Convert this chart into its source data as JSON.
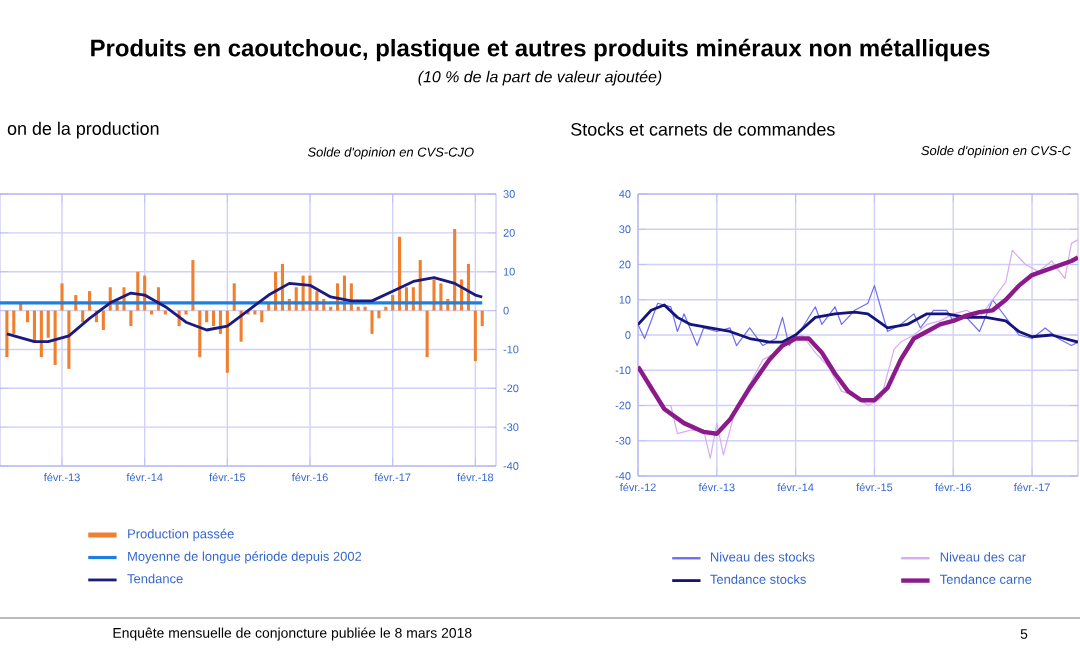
{
  "chart_data": [
    {
      "type": "bar",
      "title": "on de la production",
      "subtitle": "Solde d'opinion en CVS-CJO",
      "annotations": [
        "Produits en caoutchouc, plastique et autres produits minéraux non métalliques",
        "(10 % de la part de valeur ajoutée)",
        "Enquête mensuelle de conjoncture publiée le 8 mars 2018",
        "5"
      ],
      "xlim": [
        "2012-05",
        "2018-05"
      ],
      "ylim": [
        -40,
        30
      ],
      "xticks": [
        {
          "value": "2013-02",
          "label": "févr.-13"
        },
        {
          "value": "2014-02",
          "label": "févr.-14"
        },
        {
          "value": "2015-02",
          "label": "févr.-15"
        },
        {
          "value": "2016-02",
          "label": "févr.-16"
        },
        {
          "value": "2017-02",
          "label": "févr.-17"
        },
        {
          "value": "2018-02",
          "label": "févr.-18"
        }
      ],
      "yticks": [
        -40,
        -30,
        -20,
        -10,
        0,
        10,
        20,
        30
      ],
      "grid": true,
      "legend": "bottom",
      "series": [
        {
          "name": "Production passée",
          "type": "bar",
          "color": "#f08030",
          "x": [
            "2012-06",
            "2012-07",
            "2012-08",
            "2012-09",
            "2012-10",
            "2012-11",
            "2012-12",
            "2013-01",
            "2013-02",
            "2013-03",
            "2013-04",
            "2013-05",
            "2013-06",
            "2013-07",
            "2013-08",
            "2013-09",
            "2013-10",
            "2013-11",
            "2013-12",
            "2014-01",
            "2014-02",
            "2014-03",
            "2014-04",
            "2014-05",
            "2014-06",
            "2014-07",
            "2014-08",
            "2014-09",
            "2014-10",
            "2014-11",
            "2014-12",
            "2015-01",
            "2015-02",
            "2015-03",
            "2015-04",
            "2015-05",
            "2015-06",
            "2015-07",
            "2015-08",
            "2015-09",
            "2015-10",
            "2015-11",
            "2015-12",
            "2016-01",
            "2016-02",
            "2016-03",
            "2016-04",
            "2016-05",
            "2016-06",
            "2016-07",
            "2016-08",
            "2016-09",
            "2016-10",
            "2016-11",
            "2016-12",
            "2017-01",
            "2017-02",
            "2017-03",
            "2017-04",
            "2017-05",
            "2017-06",
            "2017-07",
            "2017-08",
            "2017-09",
            "2017-10",
            "2017-11",
            "2017-12",
            "2018-01",
            "2018-02",
            "2018-03"
          ],
          "values": [
            -12,
            -6,
            2,
            -3,
            -8,
            -12,
            -7,
            -14,
            7,
            -15,
            4,
            -3,
            5,
            -3,
            -5,
            6,
            3,
            6,
            -4,
            10,
            9,
            -1,
            6,
            -1,
            null,
            -4,
            -1,
            13,
            -12,
            -3,
            -4,
            -6,
            -16,
            7,
            -8,
            -1,
            -1,
            -3,
            2,
            10,
            12,
            3,
            6,
            9,
            9,
            5,
            3,
            1,
            7,
            9,
            7,
            1,
            1,
            -6,
            -2,
            1,
            4,
            19,
            6,
            6,
            13,
            -12,
            8,
            7,
            3,
            21,
            8,
            12,
            -13,
            -4
          ]
        },
        {
          "name": "Moyenne de longue période depuis 2002",
          "type": "line",
          "color": "#1f7fe0",
          "x": [
            "2012-05",
            "2018-03"
          ],
          "values": [
            2,
            2
          ]
        },
        {
          "name": "Tendance",
          "type": "line",
          "color": "#1a1a80",
          "x": [
            "2012-06",
            "2012-10",
            "2012-12",
            "2013-03",
            "2013-06",
            "2013-09",
            "2013-12",
            "2014-02",
            "2014-05",
            "2014-08",
            "2014-11",
            "2015-02",
            "2015-05",
            "2015-08",
            "2015-11",
            "2016-02",
            "2016-05",
            "2016-08",
            "2016-11",
            "2017-02",
            "2017-05",
            "2017-08",
            "2017-11",
            "2018-02",
            "2018-03"
          ],
          "values": [
            -6,
            -8,
            -8,
            -6.5,
            -2,
            2,
            4.5,
            4,
            1,
            -3,
            -5,
            -4,
            0,
            4,
            7,
            6.5,
            3.5,
            2.5,
            2.5,
            5,
            7.5,
            8.5,
            7,
            4,
            3.5
          ]
        }
      ]
    },
    {
      "type": "line",
      "title": "Stocks et carnets de commandes",
      "subtitle": "Solde d'opinion en CVS-C",
      "xlim": [
        "2012-02",
        "2017-09"
      ],
      "ylim": [
        -40,
        40
      ],
      "xticks": [
        {
          "value": "2012-02",
          "label": "févr.-12"
        },
        {
          "value": "2013-02",
          "label": "févr.-13"
        },
        {
          "value": "2014-02",
          "label": "févr.-14"
        },
        {
          "value": "2015-02",
          "label": "févr.-15"
        },
        {
          "value": "2016-02",
          "label": "févr.-16"
        },
        {
          "value": "2017-02",
          "label": "févr.-17"
        }
      ],
      "yticks": [
        -40,
        -30,
        -20,
        -10,
        0,
        10,
        20,
        30,
        40
      ],
      "grid": true,
      "legend": "bottom",
      "series": [
        {
          "name": "Niveau des stocks",
          "color": "#6f6ff0",
          "x": [
            "2012-02",
            "2012-03",
            "2012-05",
            "2012-07",
            "2012-08",
            "2012-09",
            "2012-11",
            "2012-12",
            "2013-02",
            "2013-04",
            "2013-05",
            "2013-07",
            "2013-09",
            "2013-11",
            "2013-12",
            "2014-01",
            "2014-03",
            "2014-05",
            "2014-06",
            "2014-08",
            "2014-09",
            "2014-11",
            "2015-01",
            "2015-02",
            "2015-04",
            "2015-06",
            "2015-08",
            "2015-09",
            "2015-11",
            "2016-01",
            "2016-02",
            "2016-04",
            "2016-06",
            "2016-08",
            "2016-10",
            "2016-12",
            "2017-02",
            "2017-04",
            "2017-06",
            "2017-08",
            "2017-09"
          ],
          "values": [
            3,
            -1,
            9,
            8,
            1,
            6,
            -3,
            2,
            1,
            2,
            -3,
            2,
            -3,
            -1,
            5,
            -3,
            2,
            8,
            3,
            8,
            3,
            7,
            9,
            14,
            1,
            3,
            6,
            2,
            7,
            7,
            4,
            5,
            1,
            10,
            5,
            0,
            -1,
            2,
            -1,
            -3,
            -2
          ]
        },
        {
          "name": "Niveau des car",
          "color": "#d8aaf0",
          "x": [
            "2012-02",
            "2012-04",
            "2012-06",
            "2012-07",
            "2012-08",
            "2012-10",
            "2012-12",
            "2013-01",
            "2013-02",
            "2013-03",
            "2013-05",
            "2013-07",
            "2013-09",
            "2013-11",
            "2014-01",
            "2014-03",
            "2014-05",
            "2014-07",
            "2014-09",
            "2014-11",
            "2015-01",
            "2015-03",
            "2015-05",
            "2015-06",
            "2015-08",
            "2015-10",
            "2015-12",
            "2016-02",
            "2016-04",
            "2016-06",
            "2016-08",
            "2016-10",
            "2016-11",
            "2017-01",
            "2017-03",
            "2017-05",
            "2017-07",
            "2017-08",
            "2017-09"
          ],
          "values": [
            -9,
            -16,
            -20,
            -20,
            -28,
            -27,
            -27,
            -35,
            -25,
            -34,
            -20,
            -14,
            -7,
            -5,
            -2,
            0,
            -5,
            -9,
            -16,
            -17,
            -20,
            -18,
            -4,
            -2,
            0,
            3,
            4,
            6,
            7,
            5,
            10,
            15,
            24,
            20,
            18,
            21,
            16,
            26,
            27
          ]
        },
        {
          "name": "Tendance stocks",
          "color": "#14147a",
          "x": [
            "2012-02",
            "2012-04",
            "2012-06",
            "2012-08",
            "2012-10",
            "2013-01",
            "2013-04",
            "2013-07",
            "2013-10",
            "2013-12",
            "2014-02",
            "2014-05",
            "2014-08",
            "2014-11",
            "2015-01",
            "2015-04",
            "2015-07",
            "2015-10",
            "2016-01",
            "2016-04",
            "2016-07",
            "2016-10",
            "2016-12",
            "2017-02",
            "2017-05",
            "2017-08",
            "2017-09"
          ],
          "values": [
            3,
            7,
            8.5,
            5,
            3,
            2,
            1,
            -1,
            -2,
            -2,
            0,
            5,
            6,
            6.5,
            6,
            2,
            3,
            6,
            6,
            5,
            5,
            4,
            1,
            -0.5,
            0,
            -1.5,
            -2
          ]
        },
        {
          "name": "Tendance carne",
          "color": "#8b1a8b",
          "x": [
            "2012-02",
            "2012-04",
            "2012-06",
            "2012-09",
            "2012-12",
            "2013-02",
            "2013-04",
            "2013-07",
            "2013-10",
            "2013-12",
            "2014-02",
            "2014-04",
            "2014-06",
            "2014-08",
            "2014-10",
            "2014-12",
            "2015-02",
            "2015-04",
            "2015-06",
            "2015-08",
            "2015-10",
            "2015-12",
            "2016-02",
            "2016-04",
            "2016-06",
            "2016-08",
            "2016-10",
            "2016-12",
            "2017-02",
            "2017-05",
            "2017-08",
            "2017-09"
          ],
          "values": [
            -9,
            -15,
            -21,
            -25,
            -27.5,
            -28,
            -24,
            -15,
            -7,
            -3,
            -1,
            -1,
            -5,
            -11,
            -16,
            -18.5,
            -18.5,
            -15,
            -7,
            -1,
            1,
            3,
            4,
            5.5,
            6.5,
            7,
            10,
            14,
            17,
            19,
            21,
            22
          ]
        }
      ]
    }
  ]
}
